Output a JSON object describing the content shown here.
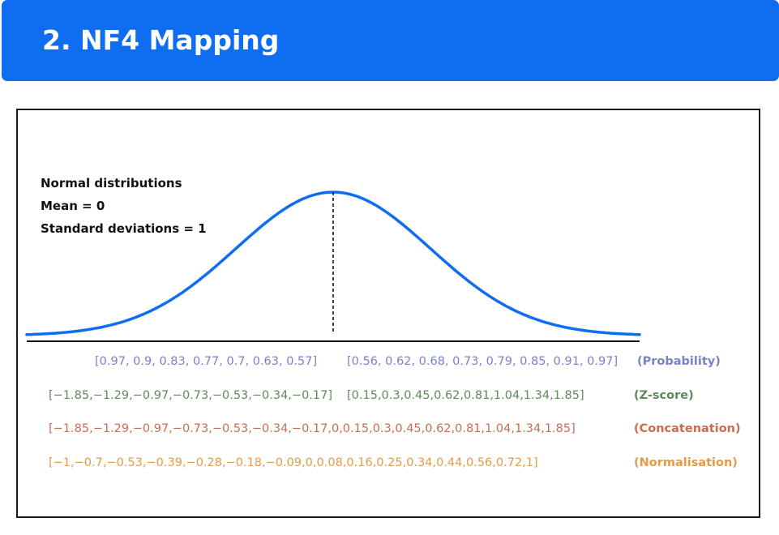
{
  "header": {
    "title": "2. NF4 Mapping"
  },
  "diagram": {
    "info": {
      "line1": "Normal distributions",
      "line2": "Mean = 0",
      "line3": "Standard deviations = 1"
    },
    "colors": {
      "banner": "#0e6df0",
      "curve": "#0e6df0",
      "probability": "#7a82c8",
      "zscore": "#5e8a5c",
      "concatenation": "#c76e4e",
      "normalisation": "#e39b4a"
    },
    "rows": {
      "probability": {
        "left": "[0.97, 0.9, 0.83, 0.77, 0.7, 0.63, 0.57]",
        "right": "[0.56, 0.62, 0.68, 0.73, 0.79, 0.85, 0.91, 0.97]",
        "label": "(Probability)"
      },
      "zscore": {
        "left": "[−1.85,−1.29,−0.97,−0.73,−0.53,−0.34,−0.17]",
        "right": "[0.15,0.3,0.45,0.62,0.81,1.04,1.34,1.85]",
        "label": "(Z-score)"
      },
      "concatenation": {
        "values": "[−1.85,−1.29,−0.97,−0.73,−0.53,−0.34,−0.17,0,0.15,0.3,0.45,0.62,0.81,1.04,1.34,1.85]",
        "label": "(Concatenation)"
      },
      "normalisation": {
        "values": "[−1,−0.7,−0.53,−0.39,−0.28,−0.18,−0.09,0,0.08,0.16,0.25,0.34,0.44,0.56,0.72,1]",
        "label": "(Normalisation)"
      }
    }
  }
}
